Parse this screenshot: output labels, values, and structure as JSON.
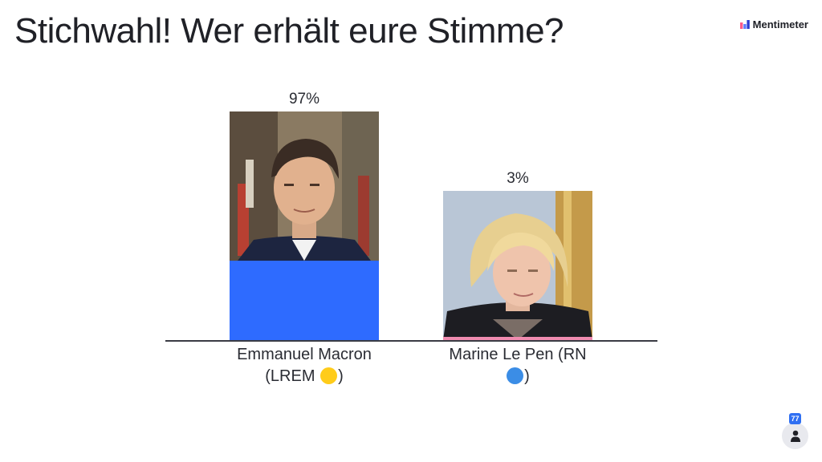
{
  "slide": {
    "title": "Stichwahl! Wer erhält eure Stimme?"
  },
  "brand": {
    "name": "Mentimeter",
    "icon": "mentimeter-logo-icon"
  },
  "chart_data": {
    "type": "bar",
    "categories": [
      "Emmanuel Macron (LREM 🟡)",
      "Marine Le Pen (RN 🔵)"
    ],
    "values": [
      97,
      3
    ],
    "value_labels": [
      "97%",
      "3%"
    ],
    "ylim": [
      0,
      100
    ],
    "bar_colors": [
      "#2e6bff",
      "#f08bb0"
    ],
    "category_labels": [
      {
        "line1": "Emmanuel Macron",
        "line2_text": "(LREM ",
        "dot_color": "#ffcc1a",
        "line2_end": ")"
      },
      {
        "line1": "Marine Le Pen (RN",
        "line2_text": "",
        "dot_color": "#3b8de6",
        "line2_end": ")"
      }
    ],
    "images": [
      "candidate-photo-macron",
      "candidate-photo-le-pen"
    ]
  },
  "participants": {
    "count": "77",
    "icon": "person-icon"
  },
  "colors": {
    "text": "#202127",
    "accent": "#2f6ff2"
  }
}
